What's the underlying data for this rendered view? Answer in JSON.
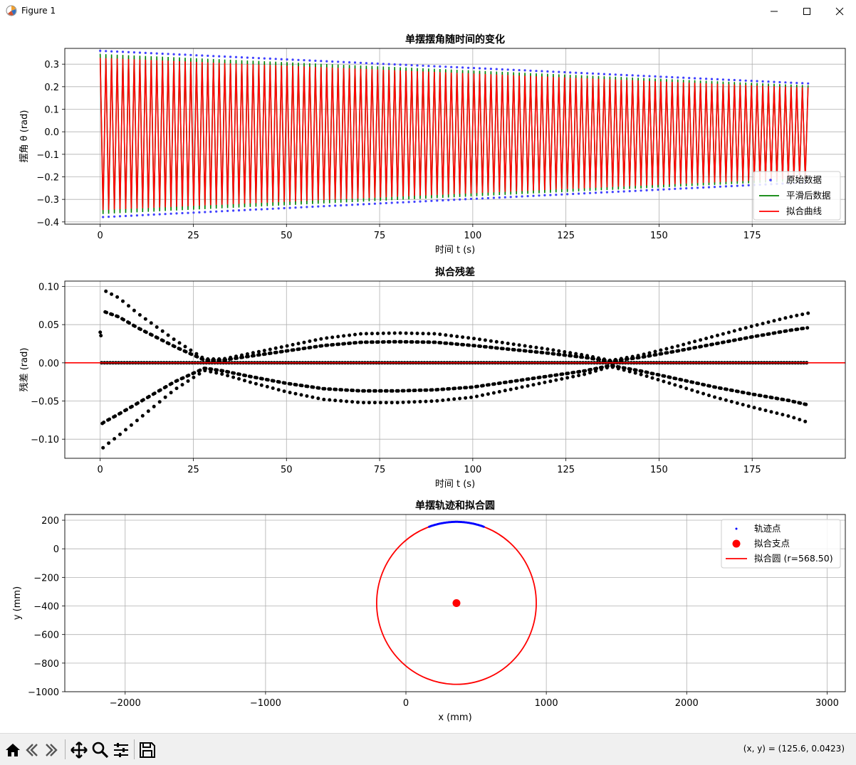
{
  "window": {
    "title": "Figure 1",
    "app_icon": "matplotlib-icon",
    "controls": [
      "minimize-icon",
      "maximize-icon",
      "close-icon"
    ]
  },
  "toolbar": {
    "buttons": [
      "home-icon",
      "back-icon",
      "forward-icon",
      "pan-icon",
      "zoom-icon",
      "configure-subplots-icon",
      "save-icon"
    ],
    "coords": "(x, y) = (125.6, 0.0423)"
  },
  "chart_data": [
    {
      "type": "line",
      "title": "单摆摆角随时间的变化",
      "xlabel": "时间 t (s)",
      "ylabel": "摆角 θ (rad)",
      "xlim": [
        -9.5,
        200
      ],
      "ylim": [
        -0.41,
        0.37
      ],
      "xticks": [
        0,
        25,
        50,
        75,
        100,
        125,
        150,
        175
      ],
      "yticks": [
        -0.4,
        -0.3,
        -0.2,
        -0.1,
        0.0,
        0.1,
        0.2,
        0.3
      ],
      "xtick_labels": [
        "0",
        "25",
        "50",
        "75",
        "100",
        "125",
        "150",
        "175"
      ],
      "ytick_labels": [
        "−0.4",
        "−0.3",
        "−0.2",
        "−0.1",
        "0.0",
        "0.1",
        "0.2",
        "0.3"
      ],
      "grid": true,
      "legend": "lower-right",
      "oscillation": {
        "t_range": [
          0,
          190
        ],
        "period": 1.52,
        "amplitude_start": 0.345,
        "amplitude_end": 0.205,
        "offset_start": -0.01,
        "offset_end": -0.005
      },
      "series": [
        {
          "name": "原始数据",
          "style": "dots",
          "color": "#4040ff"
        },
        {
          "name": "平滑后数据",
          "style": "line",
          "color": "#008000"
        },
        {
          "name": "拟合曲线",
          "style": "line",
          "color": "#ff0000"
        }
      ]
    },
    {
      "type": "scatter",
      "title": "拟合残差",
      "xlabel": "时间 t (s)",
      "ylabel": "残差 (rad)",
      "xlim": [
        -9.5,
        200
      ],
      "ylim": [
        -0.125,
        0.107
      ],
      "xticks": [
        0,
        25,
        50,
        75,
        100,
        125,
        150,
        175
      ],
      "yticks": [
        -0.1,
        -0.05,
        0.0,
        0.05,
        0.1
      ],
      "xtick_labels": [
        "0",
        "25",
        "50",
        "75",
        "100",
        "125",
        "150",
        "175"
      ],
      "ytick_labels": [
        "−0.10",
        "−0.05",
        "0.00",
        "0.05",
        "0.10"
      ],
      "grid": true,
      "zero_line_color": "#ff0000",
      "point_color": "#000000",
      "envelope": {
        "t": [
          0,
          1,
          5,
          10,
          20,
          28,
          33,
          40,
          50,
          60,
          70,
          80,
          90,
          100,
          110,
          120,
          130,
          137,
          145,
          155,
          165,
          175,
          185,
          190
        ],
        "upper": [
          0.04,
          0.095,
          0.085,
          0.065,
          0.03,
          0.005,
          0.005,
          0.012,
          0.022,
          0.032,
          0.038,
          0.039,
          0.038,
          0.032,
          0.025,
          0.018,
          0.01,
          0.003,
          0.01,
          0.022,
          0.035,
          0.048,
          0.06,
          0.065
        ],
        "lower": [
          -0.115,
          -0.11,
          -0.095,
          -0.075,
          -0.035,
          -0.01,
          -0.015,
          -0.025,
          -0.038,
          -0.048,
          -0.052,
          -0.052,
          -0.05,
          -0.045,
          -0.035,
          -0.025,
          -0.015,
          -0.005,
          -0.015,
          -0.03,
          -0.045,
          -0.058,
          -0.07,
          -0.078
        ]
      }
    },
    {
      "type": "scatter",
      "title": "单摆轨迹和拟合圆",
      "xlabel": "x (mm)",
      "ylabel": "y (mm)",
      "xlim": [
        -2430,
        3130
      ],
      "ylim": [
        -1000,
        240
      ],
      "xticks": [
        -2000,
        -1000,
        0,
        1000,
        2000,
        3000
      ],
      "yticks": [
        -1000,
        -800,
        -600,
        -400,
        -200,
        0,
        200
      ],
      "xtick_labels": [
        "−2000",
        "−1000",
        "0",
        "1000",
        "2000",
        "3000"
      ],
      "ytick_labels": [
        "−1000",
        "−800",
        "−600",
        "−400",
        "−200",
        "0",
        "200"
      ],
      "grid": true,
      "legend": "upper-right",
      "pivot": {
        "x": 360,
        "y": -380
      },
      "circle_radius": 568.5,
      "trajectory_angle_deg": 20,
      "series": [
        {
          "name": "轨迹点",
          "color": "#0000ff"
        },
        {
          "name": "拟合支点",
          "color": "#ff0000"
        },
        {
          "name": "拟合圆 (r=568.50)",
          "color": "#ff0000"
        }
      ]
    }
  ]
}
